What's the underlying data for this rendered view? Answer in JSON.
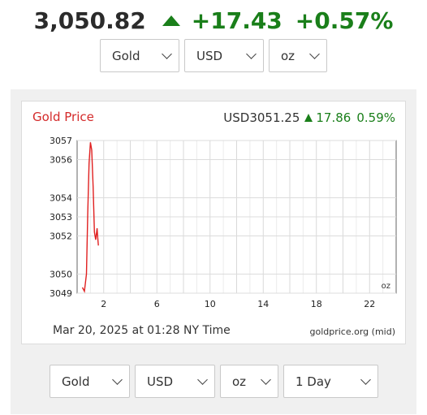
{
  "header": {
    "price": "3,050.82",
    "change": "+17.43",
    "change_pct": "+0.57%"
  },
  "top_selects": {
    "metal": "Gold",
    "currency": "USD",
    "unit": "oz"
  },
  "chart_header": {
    "title": "Gold Price",
    "quote": "USD3051.25",
    "change": "17.86",
    "change_pct": "0.59%"
  },
  "chart_footer": {
    "timestamp": "Mar 20, 2025 at 01:28 NY Time",
    "source": "goldprice.org (mid)"
  },
  "bottom_selects": {
    "metal": "Gold",
    "currency": "USD",
    "unit": "oz",
    "range": "1 Day"
  },
  "colors": {
    "up": "#1a7f1a",
    "line": "#e02020",
    "title": "#d42a2a"
  },
  "chart_data": {
    "type": "line",
    "title": "Gold Price",
    "xlabel": "",
    "ylabel": "",
    "unit_label": "oz",
    "xlim": [
      0,
      24
    ],
    "ylim": [
      3049,
      3057
    ],
    "x_ticks": [
      2,
      6,
      10,
      14,
      18,
      22
    ],
    "y_ticks": [
      3049,
      3050,
      3052,
      3053,
      3054,
      3056,
      3057
    ],
    "grid": true,
    "series": [
      {
        "x": [
          0.4,
          0.55,
          0.7,
          0.8,
          0.9,
          1.0,
          1.1,
          1.2,
          1.3,
          1.4,
          1.5,
          1.55,
          1.6
        ],
        "values": [
          3049.3,
          3049.1,
          3050.0,
          3053.2,
          3055.8,
          3056.9,
          3056.5,
          3054.6,
          3052.2,
          3051.8,
          3052.4,
          3051.9,
          3051.5
        ]
      }
    ]
  }
}
